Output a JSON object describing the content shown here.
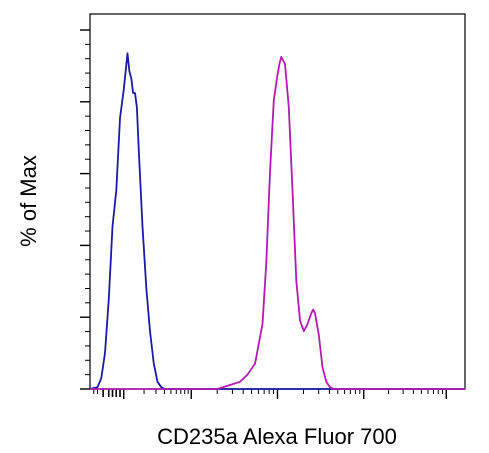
{
  "chart_data": {
    "type": "line",
    "title": "",
    "xlabel": "CD235a Alexa Fluor 700",
    "ylabel": "% of Max",
    "x_scale": "log",
    "xlim": [
      0,
      100
    ],
    "ylim": [
      0,
      100
    ],
    "grid": false,
    "legend": "none",
    "y_tick_count": 6,
    "x_decade_ticks": [
      9,
      27,
      50,
      73,
      95
    ],
    "series": [
      {
        "color": "#1a1aa6",
        "points": [
          [
            0,
            0
          ],
          [
            2,
            0.5
          ],
          [
            3,
            3
          ],
          [
            4,
            10
          ],
          [
            5,
            25
          ],
          [
            6,
            45
          ],
          [
            7,
            55
          ],
          [
            8,
            75
          ],
          [
            9,
            83
          ],
          [
            10,
            93
          ],
          [
            10.5,
            88
          ],
          [
            11,
            86
          ],
          [
            11.5,
            82
          ],
          [
            12,
            82
          ],
          [
            12.5,
            78
          ],
          [
            13,
            66
          ],
          [
            14,
            45
          ],
          [
            15,
            28
          ],
          [
            16,
            16
          ],
          [
            17,
            7
          ],
          [
            18,
            2
          ],
          [
            19,
            0.5
          ],
          [
            20,
            0
          ],
          [
            100,
            0
          ]
        ]
      },
      {
        "color": "#b31ab3",
        "points": [
          [
            0,
            0
          ],
          [
            34,
            0
          ],
          [
            37,
            1
          ],
          [
            40,
            2
          ],
          [
            42,
            4
          ],
          [
            44,
            7
          ],
          [
            46,
            18
          ],
          [
            47,
            35
          ],
          [
            48,
            60
          ],
          [
            49,
            80
          ],
          [
            50,
            87
          ],
          [
            50.5,
            90
          ],
          [
            51,
            92
          ],
          [
            52,
            90
          ],
          [
            53,
            78
          ],
          [
            54,
            55
          ],
          [
            55,
            30
          ],
          [
            56,
            19
          ],
          [
            57,
            16
          ],
          [
            58,
            18
          ],
          [
            59,
            21
          ],
          [
            59.5,
            22
          ],
          [
            60,
            21
          ],
          [
            61,
            15
          ],
          [
            62,
            6
          ],
          [
            63,
            2
          ],
          [
            64,
            0.5
          ],
          [
            65,
            0
          ],
          [
            100,
            0
          ]
        ]
      }
    ]
  }
}
